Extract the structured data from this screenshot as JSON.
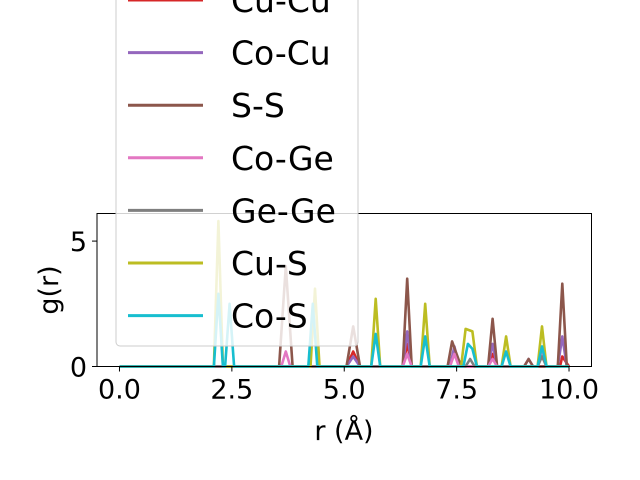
{
  "chart_data": {
    "type": "line",
    "xlabel": "r (Å)",
    "ylabel": "g(r)",
    "xlim": [
      -0.5,
      10.5
    ],
    "ylim": [
      0,
      6.1
    ],
    "xticks": [
      0.0,
      2.5,
      5.0,
      7.5,
      10.0
    ],
    "xtick_labels": [
      "0.0",
      "2.5",
      "5.0",
      "7.5",
      "10.0"
    ],
    "yticks": [
      0,
      5
    ],
    "ytick_labels": [
      "0",
      "5"
    ],
    "grid": false,
    "legend": "upper-left, overlapping plot",
    "series": [
      {
        "name": "Cu-Cu",
        "color": "#d62728",
        "points": [
          [
            0,
            0
          ],
          [
            5.05,
            0
          ],
          [
            5.2,
            0.6
          ],
          [
            5.35,
            0
          ],
          [
            6.3,
            0
          ],
          [
            6.4,
            0.9
          ],
          [
            6.5,
            0
          ],
          [
            7.35,
            0
          ],
          [
            7.45,
            0.6
          ],
          [
            7.55,
            0
          ],
          [
            8.2,
            0
          ],
          [
            8.3,
            0.5
          ],
          [
            8.4,
            0
          ],
          [
            9.8,
            0
          ],
          [
            9.85,
            0.4
          ],
          [
            10,
            0
          ]
        ]
      },
      {
        "name": "Co-Cu",
        "color": "#9467bd",
        "points": [
          [
            0,
            0
          ],
          [
            5.05,
            0
          ],
          [
            5.2,
            0.4
          ],
          [
            5.35,
            0
          ],
          [
            6.3,
            0
          ],
          [
            6.4,
            1.4
          ],
          [
            6.5,
            0
          ],
          [
            7.35,
            0
          ],
          [
            7.45,
            0.8
          ],
          [
            7.55,
            0
          ],
          [
            8.2,
            0
          ],
          [
            8.3,
            0.9
          ],
          [
            8.4,
            0
          ],
          [
            9.0,
            0
          ],
          [
            9.1,
            0.3
          ],
          [
            9.2,
            0
          ],
          [
            9.75,
            0
          ],
          [
            9.85,
            1.2
          ],
          [
            9.95,
            0
          ]
        ]
      },
      {
        "name": "S-S",
        "color": "#8c564b",
        "points": [
          [
            0,
            0
          ],
          [
            3.55,
            0
          ],
          [
            3.7,
            4.0
          ],
          [
            3.85,
            0
          ],
          [
            5.05,
            0
          ],
          [
            5.2,
            1.6
          ],
          [
            5.35,
            0
          ],
          [
            6.3,
            0
          ],
          [
            6.4,
            3.5
          ],
          [
            6.5,
            0
          ],
          [
            7.3,
            0
          ],
          [
            7.4,
            1.0
          ],
          [
            7.5,
            0.5
          ],
          [
            7.6,
            0
          ],
          [
            8.2,
            0
          ],
          [
            8.3,
            1.9
          ],
          [
            8.4,
            0
          ],
          [
            9.0,
            0
          ],
          [
            9.1,
            0.3
          ],
          [
            9.2,
            0
          ],
          [
            9.75,
            0
          ],
          [
            9.85,
            3.3
          ],
          [
            9.95,
            0
          ]
        ]
      },
      {
        "name": "Co-Ge",
        "color": "#e377c2",
        "points": [
          [
            0,
            0
          ],
          [
            3.6,
            0
          ],
          [
            3.7,
            0.6
          ],
          [
            3.8,
            0
          ],
          [
            6.3,
            0
          ],
          [
            6.4,
            0.5
          ],
          [
            6.5,
            0
          ],
          [
            7.35,
            0
          ],
          [
            7.45,
            0.5
          ],
          [
            7.55,
            0
          ],
          [
            8.2,
            0
          ],
          [
            8.3,
            0.3
          ],
          [
            8.4,
            0
          ],
          [
            9.3,
            0
          ],
          [
            9.4,
            0.5
          ],
          [
            9.5,
            0
          ]
        ]
      },
      {
        "name": "Ge-Ge",
        "color": "#7f7f7f",
        "points": [
          [
            0,
            0
          ],
          [
            7.7,
            0
          ],
          [
            7.8,
            0.3
          ],
          [
            7.9,
            0
          ],
          [
            9.3,
            0
          ],
          [
            9.4,
            0.4
          ],
          [
            9.5,
            0
          ]
        ]
      },
      {
        "name": "Cu-S",
        "color": "#bcbd22",
        "points": [
          [
            0,
            0
          ],
          [
            2.1,
            0
          ],
          [
            2.2,
            5.8
          ],
          [
            2.3,
            0
          ],
          [
            4.25,
            0
          ],
          [
            4.35,
            3.1
          ],
          [
            4.45,
            0
          ],
          [
            5.6,
            0
          ],
          [
            5.7,
            2.7
          ],
          [
            5.8,
            0
          ],
          [
            6.7,
            0
          ],
          [
            6.8,
            2.5
          ],
          [
            6.9,
            0
          ],
          [
            7.6,
            0
          ],
          [
            7.7,
            1.5
          ],
          [
            7.85,
            1.4
          ],
          [
            7.95,
            0
          ],
          [
            8.5,
            0
          ],
          [
            8.6,
            1.2
          ],
          [
            8.7,
            0
          ],
          [
            9.3,
            0
          ],
          [
            9.4,
            1.6
          ],
          [
            9.5,
            0
          ],
          [
            10,
            0
          ]
        ]
      },
      {
        "name": "Co-S",
        "color": "#17becf",
        "points": [
          [
            0,
            0
          ],
          [
            2.1,
            0
          ],
          [
            2.2,
            2.9
          ],
          [
            2.3,
            0
          ],
          [
            2.35,
            0
          ],
          [
            2.45,
            2.5
          ],
          [
            2.55,
            0
          ],
          [
            4.2,
            0
          ],
          [
            4.3,
            2.5
          ],
          [
            4.4,
            0
          ],
          [
            5.6,
            0
          ],
          [
            5.7,
            1.3
          ],
          [
            5.8,
            0
          ],
          [
            6.7,
            0
          ],
          [
            6.8,
            1.2
          ],
          [
            6.9,
            0
          ],
          [
            7.65,
            0
          ],
          [
            7.75,
            0.9
          ],
          [
            7.85,
            0.7
          ],
          [
            7.95,
            0
          ],
          [
            8.5,
            0
          ],
          [
            8.6,
            0.6
          ],
          [
            8.7,
            0
          ],
          [
            9.3,
            0
          ],
          [
            9.4,
            0.8
          ],
          [
            9.5,
            0
          ],
          [
            10,
            0
          ]
        ]
      }
    ],
    "hidden_series_note_colors": [
      "#1f77b4",
      "#ff7f0e",
      "#2ca02c"
    ]
  }
}
